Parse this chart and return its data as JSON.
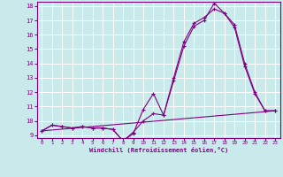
{
  "xlabel": "Windchill (Refroidissement éolien,°C)",
  "background_color": "#c8eaea",
  "grid_color": "#ffffff",
  "line_color": "#800080",
  "xlim": [
    -0.5,
    23.5
  ],
  "ylim": [
    8.8,
    18.3
  ],
  "yticks": [
    9,
    10,
    11,
    12,
    13,
    14,
    15,
    16,
    17,
    18
  ],
  "xticks": [
    0,
    1,
    2,
    3,
    4,
    5,
    6,
    7,
    8,
    9,
    10,
    11,
    12,
    13,
    14,
    15,
    16,
    17,
    18,
    19,
    20,
    21,
    22,
    23
  ],
  "series_zigzag": {
    "x": [
      0,
      1,
      2,
      3,
      4,
      5,
      6,
      7,
      8,
      9,
      10,
      11,
      12,
      13,
      14,
      15,
      16,
      17,
      18,
      19,
      20,
      21,
      22,
      23
    ],
    "y": [
      9.3,
      9.7,
      9.6,
      9.5,
      9.6,
      9.5,
      9.5,
      9.4,
      8.6,
      9.1,
      10.8,
      11.9,
      10.4,
      12.8,
      15.2,
      16.6,
      17.0,
      18.2,
      17.5,
      16.5,
      13.8,
      11.9,
      10.7,
      10.7
    ]
  },
  "series_smooth": {
    "x": [
      0,
      1,
      2,
      3,
      4,
      5,
      6,
      7,
      8,
      9,
      10,
      11,
      12,
      13,
      14,
      15,
      16,
      17,
      18,
      19,
      20,
      21,
      22,
      23
    ],
    "y": [
      9.3,
      9.7,
      9.6,
      9.5,
      9.6,
      9.5,
      9.5,
      9.4,
      8.6,
      9.2,
      10.0,
      10.5,
      10.4,
      13.0,
      15.5,
      16.8,
      17.2,
      17.8,
      17.5,
      16.7,
      14.0,
      12.0,
      10.7,
      10.7
    ]
  },
  "series_linear": {
    "x": [
      0,
      23
    ],
    "y": [
      9.3,
      10.7
    ]
  }
}
